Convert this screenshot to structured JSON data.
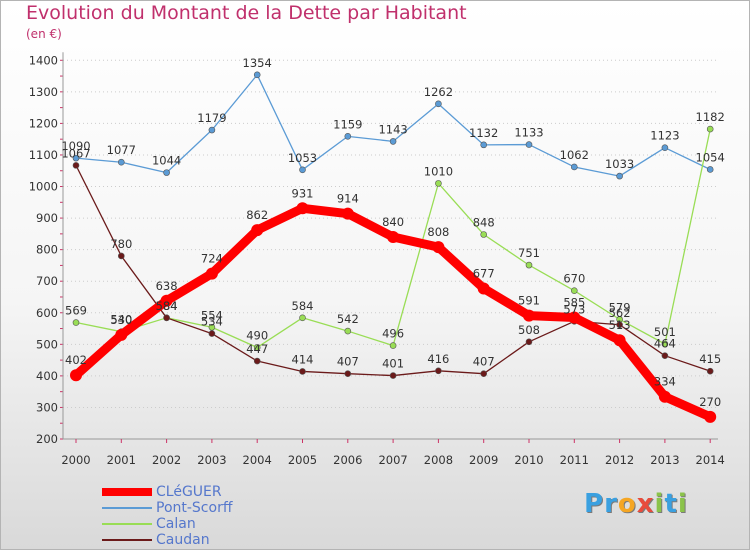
{
  "title": "Evolution du Montant de la Dette par Habitant",
  "unit": "(en €)",
  "logo": {
    "p": "P",
    "r": "r",
    "o": "o",
    "x": "x",
    "i1": "i",
    "t": "t",
    "i2": "i"
  },
  "colors": {
    "title": "#c0306c",
    "cleguer": "#ff0000",
    "pont_scorff": "#5b9bd5",
    "calan": "#99dd55",
    "caudan": "#6b1a1a",
    "legend_text": "#5577cc"
  },
  "chart_data": {
    "type": "line",
    "title": "Evolution du Montant de la Dette par Habitant",
    "xlabel": "",
    "ylabel": "(en €)",
    "ylim": [
      200,
      1400
    ],
    "yticks": [
      200,
      300,
      400,
      500,
      600,
      700,
      800,
      900,
      1000,
      1100,
      1200,
      1300,
      1400
    ],
    "categories": [
      "2000",
      "2001",
      "2002",
      "2003",
      "2004",
      "2005",
      "2006",
      "2007",
      "2008",
      "2009",
      "2010",
      "2011",
      "2012",
      "2013",
      "2014"
    ],
    "grid": "horizontal dotted",
    "legend_position": "bottom-left",
    "series": [
      {
        "name": "Pont-Scorff",
        "color": "#5b9bd5",
        "values": [
          1090,
          1077,
          1044,
          1179,
          1354,
          1053,
          1159,
          1143,
          1262,
          1132,
          1133,
          1062,
          1033,
          1123,
          1054
        ]
      },
      {
        "name": "Calan",
        "color": "#99dd55",
        "values": [
          569,
          540,
          584,
          554,
          490,
          584,
          542,
          496,
          1010,
          848,
          751,
          670,
          579,
          501,
          1182
        ]
      },
      {
        "name": "Caudan",
        "color": "#6b1a1a",
        "values": [
          1067,
          780,
          584,
          534,
          447,
          414,
          407,
          401,
          416,
          407,
          508,
          573,
          562,
          464,
          415
        ]
      },
      {
        "name": "CLéGUER",
        "color": "#ff0000",
        "values": [
          402,
          530,
          638,
          724,
          862,
          931,
          914,
          840,
          808,
          677,
          591,
          585,
          513,
          334,
          270
        ]
      }
    ]
  }
}
